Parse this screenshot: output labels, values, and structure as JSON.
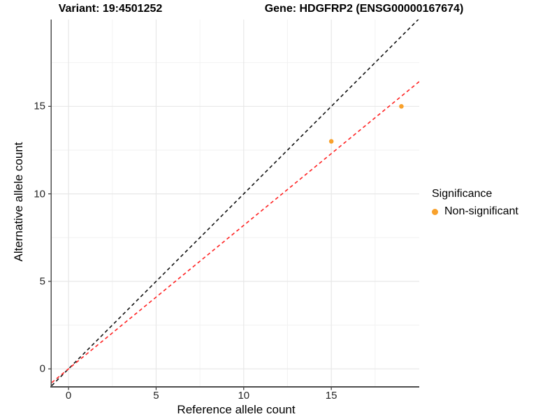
{
  "titles": {
    "variant": "Variant: 19:4501252",
    "gene": "Gene: HDGFRP2 (ENSG00000167674)"
  },
  "axes": {
    "x": {
      "label": "Reference allele count",
      "tick_labels": [
        "0",
        "5",
        "10",
        "15"
      ]
    },
    "y": {
      "label": "Alternative allele count",
      "tick_labels": [
        "0",
        "5",
        "10",
        "15"
      ]
    }
  },
  "legend": {
    "title": "Significance",
    "items": [
      {
        "label": "Non-significant",
        "color": "#F8A12C"
      }
    ]
  },
  "chart_data": {
    "type": "scatter",
    "title": "Variant: 19:4501252 | Gene: HDGFRP2 (ENSG00000167674)",
    "xlabel": "Reference allele count",
    "ylabel": "Alternative allele count",
    "xlim": [
      -0.96,
      20.02
    ],
    "ylim": [
      -0.99,
      19.96
    ],
    "x_major_ticks": [
      0,
      5,
      10,
      15
    ],
    "x_minor_ticks": [
      2.5,
      7.5,
      12.5,
      17.5
    ],
    "y_major_ticks": [
      0,
      5,
      10,
      15
    ],
    "y_minor_ticks": [
      2.5,
      7.5,
      12.5,
      17.5
    ],
    "grid": "major+minor",
    "legend_position": "right",
    "series": [
      {
        "name": "Non-significant",
        "color": "#F8A12C",
        "marker": "circle",
        "points": [
          {
            "x": 15,
            "y": 13
          },
          {
            "x": 19,
            "y": 15
          }
        ]
      }
    ],
    "reference_lines": [
      {
        "name": "identity",
        "slope": 1,
        "intercept": 0,
        "color": "#111111",
        "style": "dashed"
      },
      {
        "name": "fit",
        "slope": 0.82,
        "intercept": 0,
        "color": "#FF2222",
        "style": "dashed"
      }
    ]
  },
  "colors": {
    "grid_major": "#E7E7E7",
    "grid_minor": "#F2F2F2",
    "axis_line": "#4D4D4D",
    "tick_mark": "#333333",
    "point": "#F8A12C"
  }
}
